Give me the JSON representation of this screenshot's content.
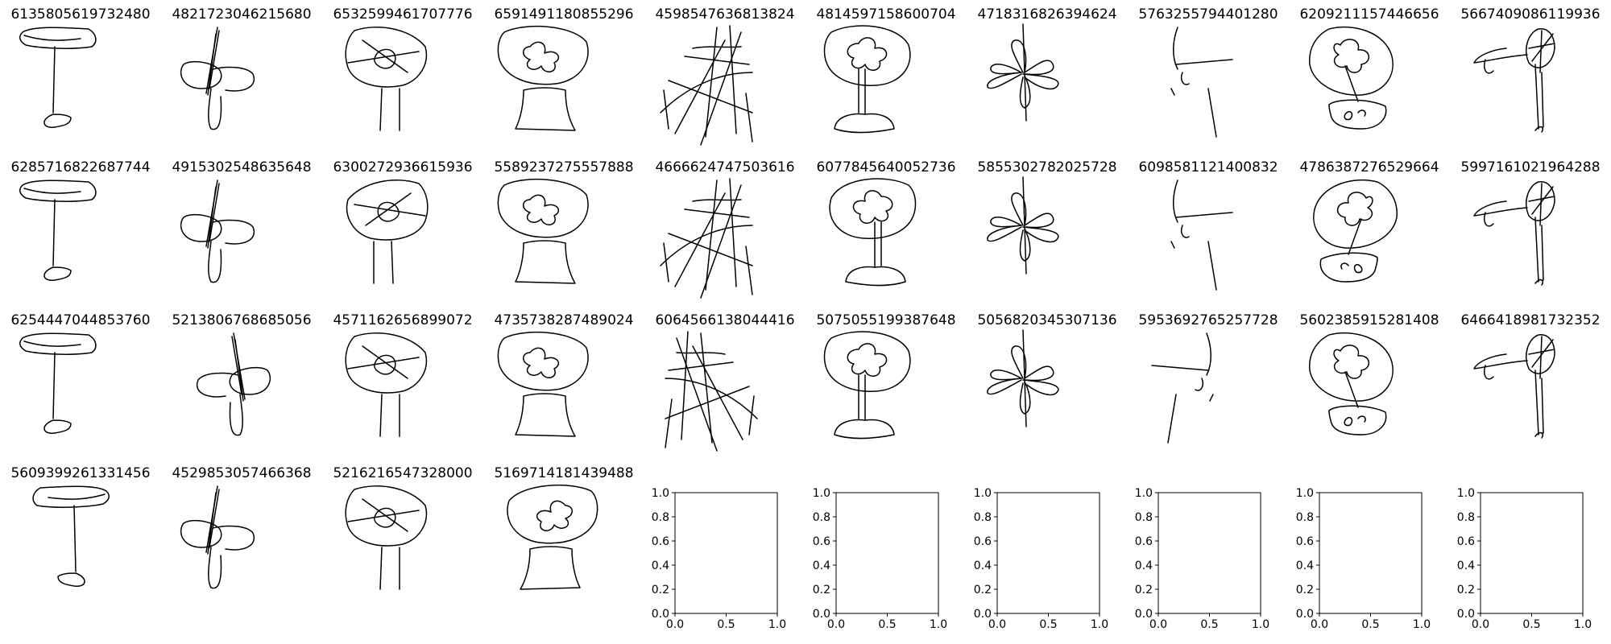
{
  "sketches": [
    {
      "id": "6135805619732480",
      "subject": "flower"
    },
    {
      "id": "4821723046215680",
      "subject": "flower"
    },
    {
      "id": "6532599461707776",
      "subject": "flower"
    },
    {
      "id": "6591491180855296",
      "subject": "flower"
    },
    {
      "id": "4598547636813824",
      "subject": "flower"
    },
    {
      "id": "4814597158600704",
      "subject": "flower"
    },
    {
      "id": "4718316826394624",
      "subject": "flower"
    },
    {
      "id": "5763255794401280",
      "subject": "flower"
    },
    {
      "id": "6209211157446656",
      "subject": "flower"
    },
    {
      "id": "5667409086119936",
      "subject": "flower"
    },
    {
      "id": "6285716822687744",
      "subject": "flower"
    },
    {
      "id": "4915302548635648",
      "subject": "flower"
    },
    {
      "id": "6300272936615936",
      "subject": "flower"
    },
    {
      "id": "5589237275557888",
      "subject": "flower"
    },
    {
      "id": "4666624747503616",
      "subject": "flower"
    },
    {
      "id": "6077845640052736",
      "subject": "flower"
    },
    {
      "id": "5855302782025728",
      "subject": "flower"
    },
    {
      "id": "6098581121400832",
      "subject": "flower"
    },
    {
      "id": "4786387276529664",
      "subject": "flower"
    },
    {
      "id": "5997161021964288",
      "subject": "flower"
    },
    {
      "id": "6254447044853760",
      "subject": "flower"
    },
    {
      "id": "5213806768685056",
      "subject": "flower"
    },
    {
      "id": "4571162656899072",
      "subject": "flower"
    },
    {
      "id": "4735738287489024",
      "subject": "flower"
    },
    {
      "id": "6064566138044416",
      "subject": "flower"
    },
    {
      "id": "5075055199387648",
      "subject": "flower"
    },
    {
      "id": "5056820345307136",
      "subject": "flower"
    },
    {
      "id": "5953692765257728",
      "subject": "flower"
    },
    {
      "id": "5602385915281408",
      "subject": "flower"
    },
    {
      "id": "6466418981732352",
      "subject": "flower"
    },
    {
      "id": "5609399261331456",
      "subject": "flower"
    },
    {
      "id": "4529853057466368",
      "subject": "flower"
    },
    {
      "id": "5216216547328000",
      "subject": "flower"
    },
    {
      "id": "5169714181439488",
      "subject": "flower"
    }
  ],
  "empty_axes": {
    "count": 6,
    "x_ticks": [
      "0.0",
      "0.5",
      "1.0"
    ],
    "y_ticks": [
      "0.0",
      "0.2",
      "0.4",
      "0.6",
      "0.8",
      "1.0"
    ]
  },
  "colors": {
    "stroke": "#000000",
    "background": "#ffffff"
  }
}
